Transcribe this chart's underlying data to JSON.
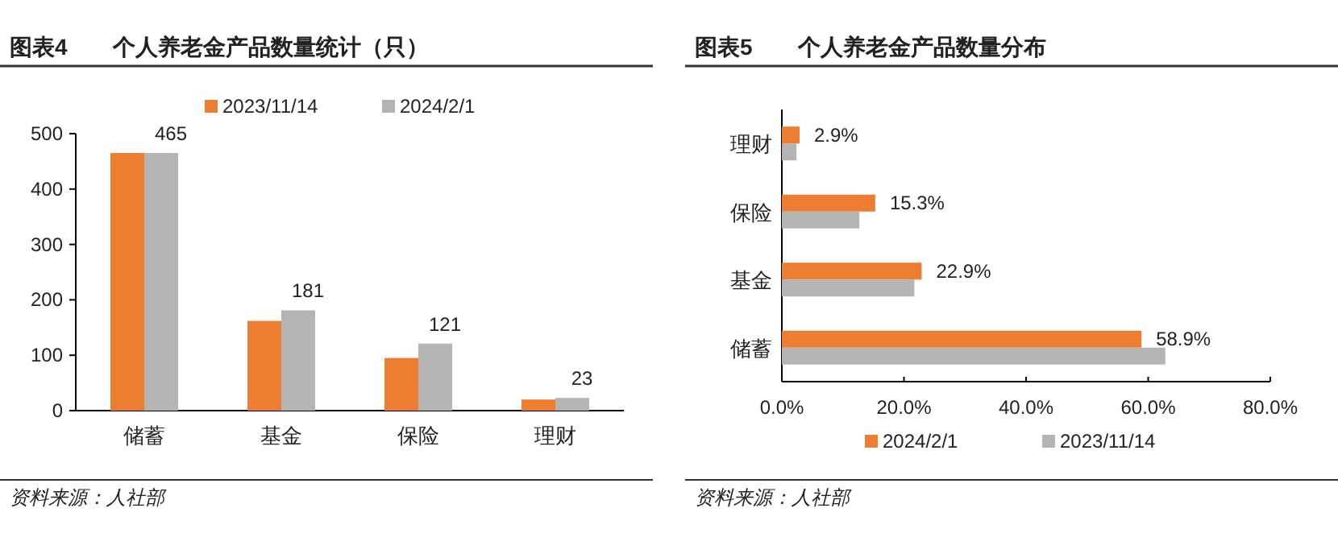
{
  "chart_data": [
    {
      "type": "bar",
      "title": "图表4　　个人养老金产品数量统计（只）",
      "categories": [
        "储蓄",
        "基金",
        "保险",
        "理财"
      ],
      "series": [
        {
          "name": "2023/11/14",
          "color": "#ed7d31",
          "values": [
            465,
            162,
            95,
            20
          ]
        },
        {
          "name": "2024/2/1",
          "color": "#b4b4b4",
          "values": [
            465,
            181,
            121,
            23
          ],
          "value_labels": [
            "465",
            "181",
            "121",
            "23"
          ]
        }
      ],
      "ylim": [
        0,
        500
      ],
      "yticks": [
        0,
        100,
        200,
        300,
        400,
        500
      ],
      "legend": "top",
      "annotations": [
        "资料来源：人社部"
      ]
    },
    {
      "type": "bar",
      "orientation": "horizontal",
      "title": "图表5　　个人养老金产品数量分布",
      "categories": [
        "理财",
        "保险",
        "基金",
        "储蓄"
      ],
      "series": [
        {
          "name": "2024/2/1",
          "color": "#ed7d31",
          "values": [
            2.9,
            15.3,
            22.9,
            58.9
          ],
          "value_labels": [
            "2.9%",
            "15.3%",
            "22.9%",
            "58.9%"
          ]
        },
        {
          "name": "2023/11/14",
          "color": "#b4b4b4",
          "values": [
            2.4,
            12.7,
            21.7,
            62.8
          ]
        }
      ],
      "xlim": [
        0,
        80
      ],
      "xticks": [
        {
          "value": 0,
          "label": "0.0%"
        },
        {
          "value": 20,
          "label": "20.0%"
        },
        {
          "value": 40,
          "label": "40.0%"
        },
        {
          "value": 60,
          "label": "60.0%"
        },
        {
          "value": 80,
          "label": "80.0%"
        }
      ],
      "legend": "bottom",
      "annotations": [
        "资料来源：人社部"
      ]
    }
  ]
}
